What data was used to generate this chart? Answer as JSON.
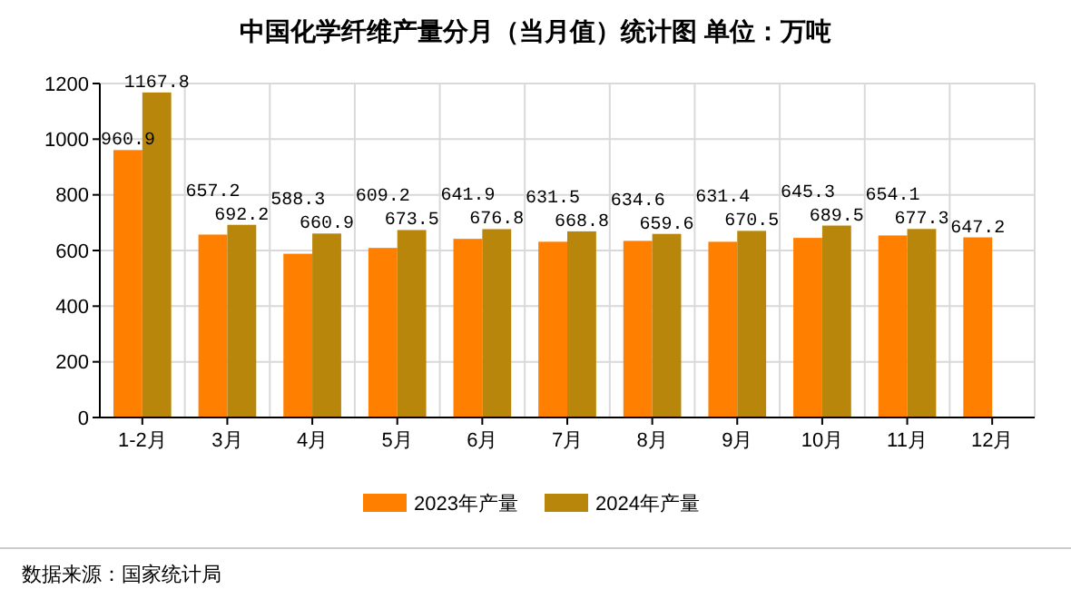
{
  "chart_data": {
    "type": "bar",
    "title": "中国化学纤维产量分月（当月值）统计图 单位：万吨",
    "categories": [
      "1-2月",
      "3月",
      "4月",
      "5月",
      "6月",
      "7月",
      "8月",
      "9月",
      "10月",
      "11月",
      "12月"
    ],
    "series": [
      {
        "name": "2023年产量",
        "color": "#ff8000",
        "values": [
          960.9,
          657.2,
          588.3,
          609.2,
          641.9,
          631.5,
          634.6,
          631.4,
          645.3,
          654.1,
          647.2
        ]
      },
      {
        "name": "2024年产量",
        "color": "#b8860b",
        "values": [
          1167.8,
          692.2,
          660.9,
          673.5,
          676.8,
          668.8,
          659.6,
          670.5,
          689.5,
          677.3,
          null
        ]
      }
    ],
    "ylim": [
      0,
      1200
    ],
    "yticks": [
      0,
      200,
      400,
      600,
      800,
      1000,
      1200
    ],
    "grid": true,
    "legend": "bottom",
    "data_labels": true,
    "annotations": [
      "数据来源：国家统计局"
    ]
  }
}
